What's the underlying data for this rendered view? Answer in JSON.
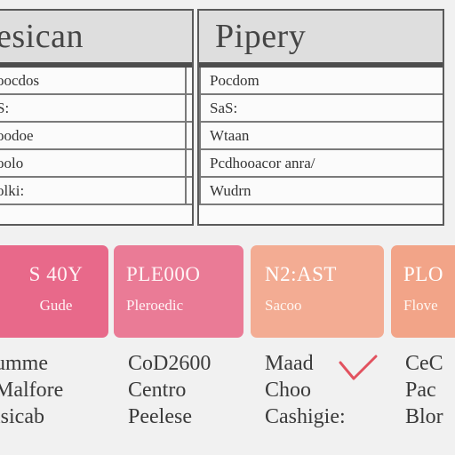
{
  "colors": {
    "card_1": "#e8698a",
    "card_2": "#ea7b96",
    "card_3": "#f3ac93",
    "card_4": "#f2a488",
    "check": "#e2525f"
  },
  "tables": [
    {
      "title": "esican",
      "rows": [
        "oocdos",
        "S:",
        "oodoe",
        "oolo",
        "olki:"
      ]
    },
    {
      "title": "Pipery",
      "rows": [
        "Pocdom",
        "SaS:",
        "Wtaan",
        "Pcdhooacor anra/",
        "Wudrn"
      ]
    }
  ],
  "cards": [
    {
      "title": "S 40Y",
      "subtitle": "Gude"
    },
    {
      "title": "PLE00O",
      "subtitle": "Pleroedic"
    },
    {
      "title": "N2:AST",
      "subtitle": "Sacoo"
    },
    {
      "title": "PLO",
      "subtitle": "Flove"
    }
  ],
  "label_columns": [
    [
      "umme",
      "Malfore",
      "isicab"
    ],
    [
      "CoD2600",
      "Centro",
      "Peelese"
    ],
    [
      "Maad",
      "Choo",
      "Cashigie:"
    ],
    [
      "CeC",
      "Pac",
      "Blor"
    ]
  ],
  "icons": {
    "check": "check-icon"
  }
}
